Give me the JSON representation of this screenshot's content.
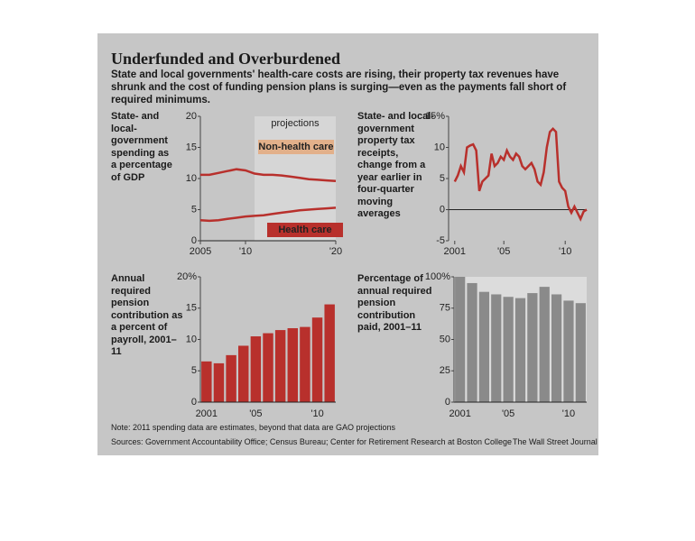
{
  "header": {
    "title": "Underfunded and Overburdened",
    "subtitle": "State and local governments' health-care costs are rising, their property tax revenues have shrunk and the cost of funding pension plans is surging—even as the payments fall short of required minimums."
  },
  "footer": {
    "note": "Note: 2011 spending data are estimates, beyond that data are GAO projections",
    "source": "Sources: Government Accountability Office; Census Bureau; Center for Retirement Research at Boston College",
    "credit": "The Wall Street Journal"
  },
  "chart_data": [
    {
      "type": "line",
      "title": "State- and local-government spending as a percentage of GDP",
      "annotation": "projections",
      "projection_range": [
        2011,
        2020
      ],
      "x": [
        2005,
        2006,
        2007,
        2008,
        2009,
        2010,
        2011,
        2012,
        2013,
        2014,
        2015,
        2016,
        2017,
        2018,
        2019,
        2020
      ],
      "series": [
        {
          "name": "Non-health care",
          "color": "#b8302c",
          "values": [
            10.6,
            10.6,
            10.9,
            11.2,
            11.5,
            11.3,
            10.8,
            10.6,
            10.6,
            10.5,
            10.3,
            10.1,
            9.9,
            9.8,
            9.7,
            9.6
          ]
        },
        {
          "name": "Health care",
          "color": "#b8302c",
          "values": [
            3.3,
            3.2,
            3.3,
            3.5,
            3.7,
            3.9,
            4.0,
            4.1,
            4.3,
            4.5,
            4.7,
            4.9,
            5.0,
            5.1,
            5.2,
            5.3
          ]
        }
      ],
      "xlim": [
        2005,
        2020
      ],
      "xticks": [
        2005,
        {
          "value": 2010,
          "label": "'10"
        },
        {
          "value": 2020,
          "label": "'20"
        }
      ],
      "ylim": [
        0,
        20
      ],
      "yticks": [
        0,
        5,
        10,
        15,
        20
      ]
    },
    {
      "type": "line",
      "title": "State- and local-government property tax receipts, change from a year earlier in four-quarter moving averages",
      "x": [
        2001,
        2001.25,
        2001.5,
        2001.75,
        2002,
        2002.25,
        2002.5,
        2002.75,
        2003,
        2003.25,
        2003.5,
        2003.75,
        2004,
        2004.25,
        2004.5,
        2004.75,
        2005,
        2005.25,
        2005.5,
        2005.75,
        2006,
        2006.25,
        2006.5,
        2006.75,
        2007,
        2007.25,
        2007.5,
        2007.75,
        2008,
        2008.25,
        2008.5,
        2008.75,
        2009,
        2009.25,
        2009.5,
        2009.75,
        2010,
        2010.25,
        2010.5,
        2010.75,
        2011,
        2011.25,
        2011.5,
        2011.75
      ],
      "values": [
        4.5,
        5.5,
        7,
        6,
        10,
        10.3,
        10.5,
        9.5,
        3,
        4.5,
        5,
        5.5,
        9,
        7,
        7.5,
        8.5,
        8,
        9.5,
        8.5,
        8,
        9,
        8.5,
        7,
        6.5,
        7,
        7.5,
        6.5,
        4.5,
        4,
        6,
        10,
        12.5,
        13,
        12.5,
        4.5,
        3.5,
        3,
        0.5,
        -0.5,
        0.5,
        -0.5,
        -1.5,
        -0.3,
        0
      ],
      "color": "#b8302c",
      "xlim": [
        2000.5,
        2011.75
      ],
      "xticks": [
        2001,
        {
          "value": 2005,
          "label": "'05"
        },
        {
          "value": 2010,
          "label": "'10"
        }
      ],
      "ylim": [
        -5,
        15
      ],
      "yticks": [
        -5,
        0,
        5,
        10,
        {
          "value": 15,
          "label": "15%"
        }
      ]
    },
    {
      "type": "bar",
      "title": "Annual required pension contribution as a percent of payroll, 2001–11",
      "categories": [
        "2001",
        null,
        null,
        null,
        "'05",
        null,
        null,
        null,
        null,
        "'10",
        null
      ],
      "values": [
        6.5,
        6.2,
        7.5,
        9,
        10.5,
        11,
        11.5,
        11.8,
        12,
        13.5,
        15.6
      ],
      "color": "#b8302c",
      "ylim": [
        0,
        20
      ],
      "yticks": [
        0,
        5,
        10,
        15,
        {
          "value": 20,
          "label": "20%"
        }
      ]
    },
    {
      "type": "bar",
      "title": "Percentage of annual required pension contribution paid, 2001–11",
      "categories": [
        "2001",
        null,
        null,
        null,
        "'05",
        null,
        null,
        null,
        null,
        "'10",
        null
      ],
      "values": [
        100,
        95,
        88,
        86,
        84,
        83,
        87,
        92,
        86,
        81,
        79
      ],
      "color": "#8a8a8a",
      "ylim": [
        0,
        100
      ],
      "yticks": [
        0,
        25,
        50,
        75,
        {
          "value": 100,
          "label": "100%"
        }
      ]
    }
  ]
}
